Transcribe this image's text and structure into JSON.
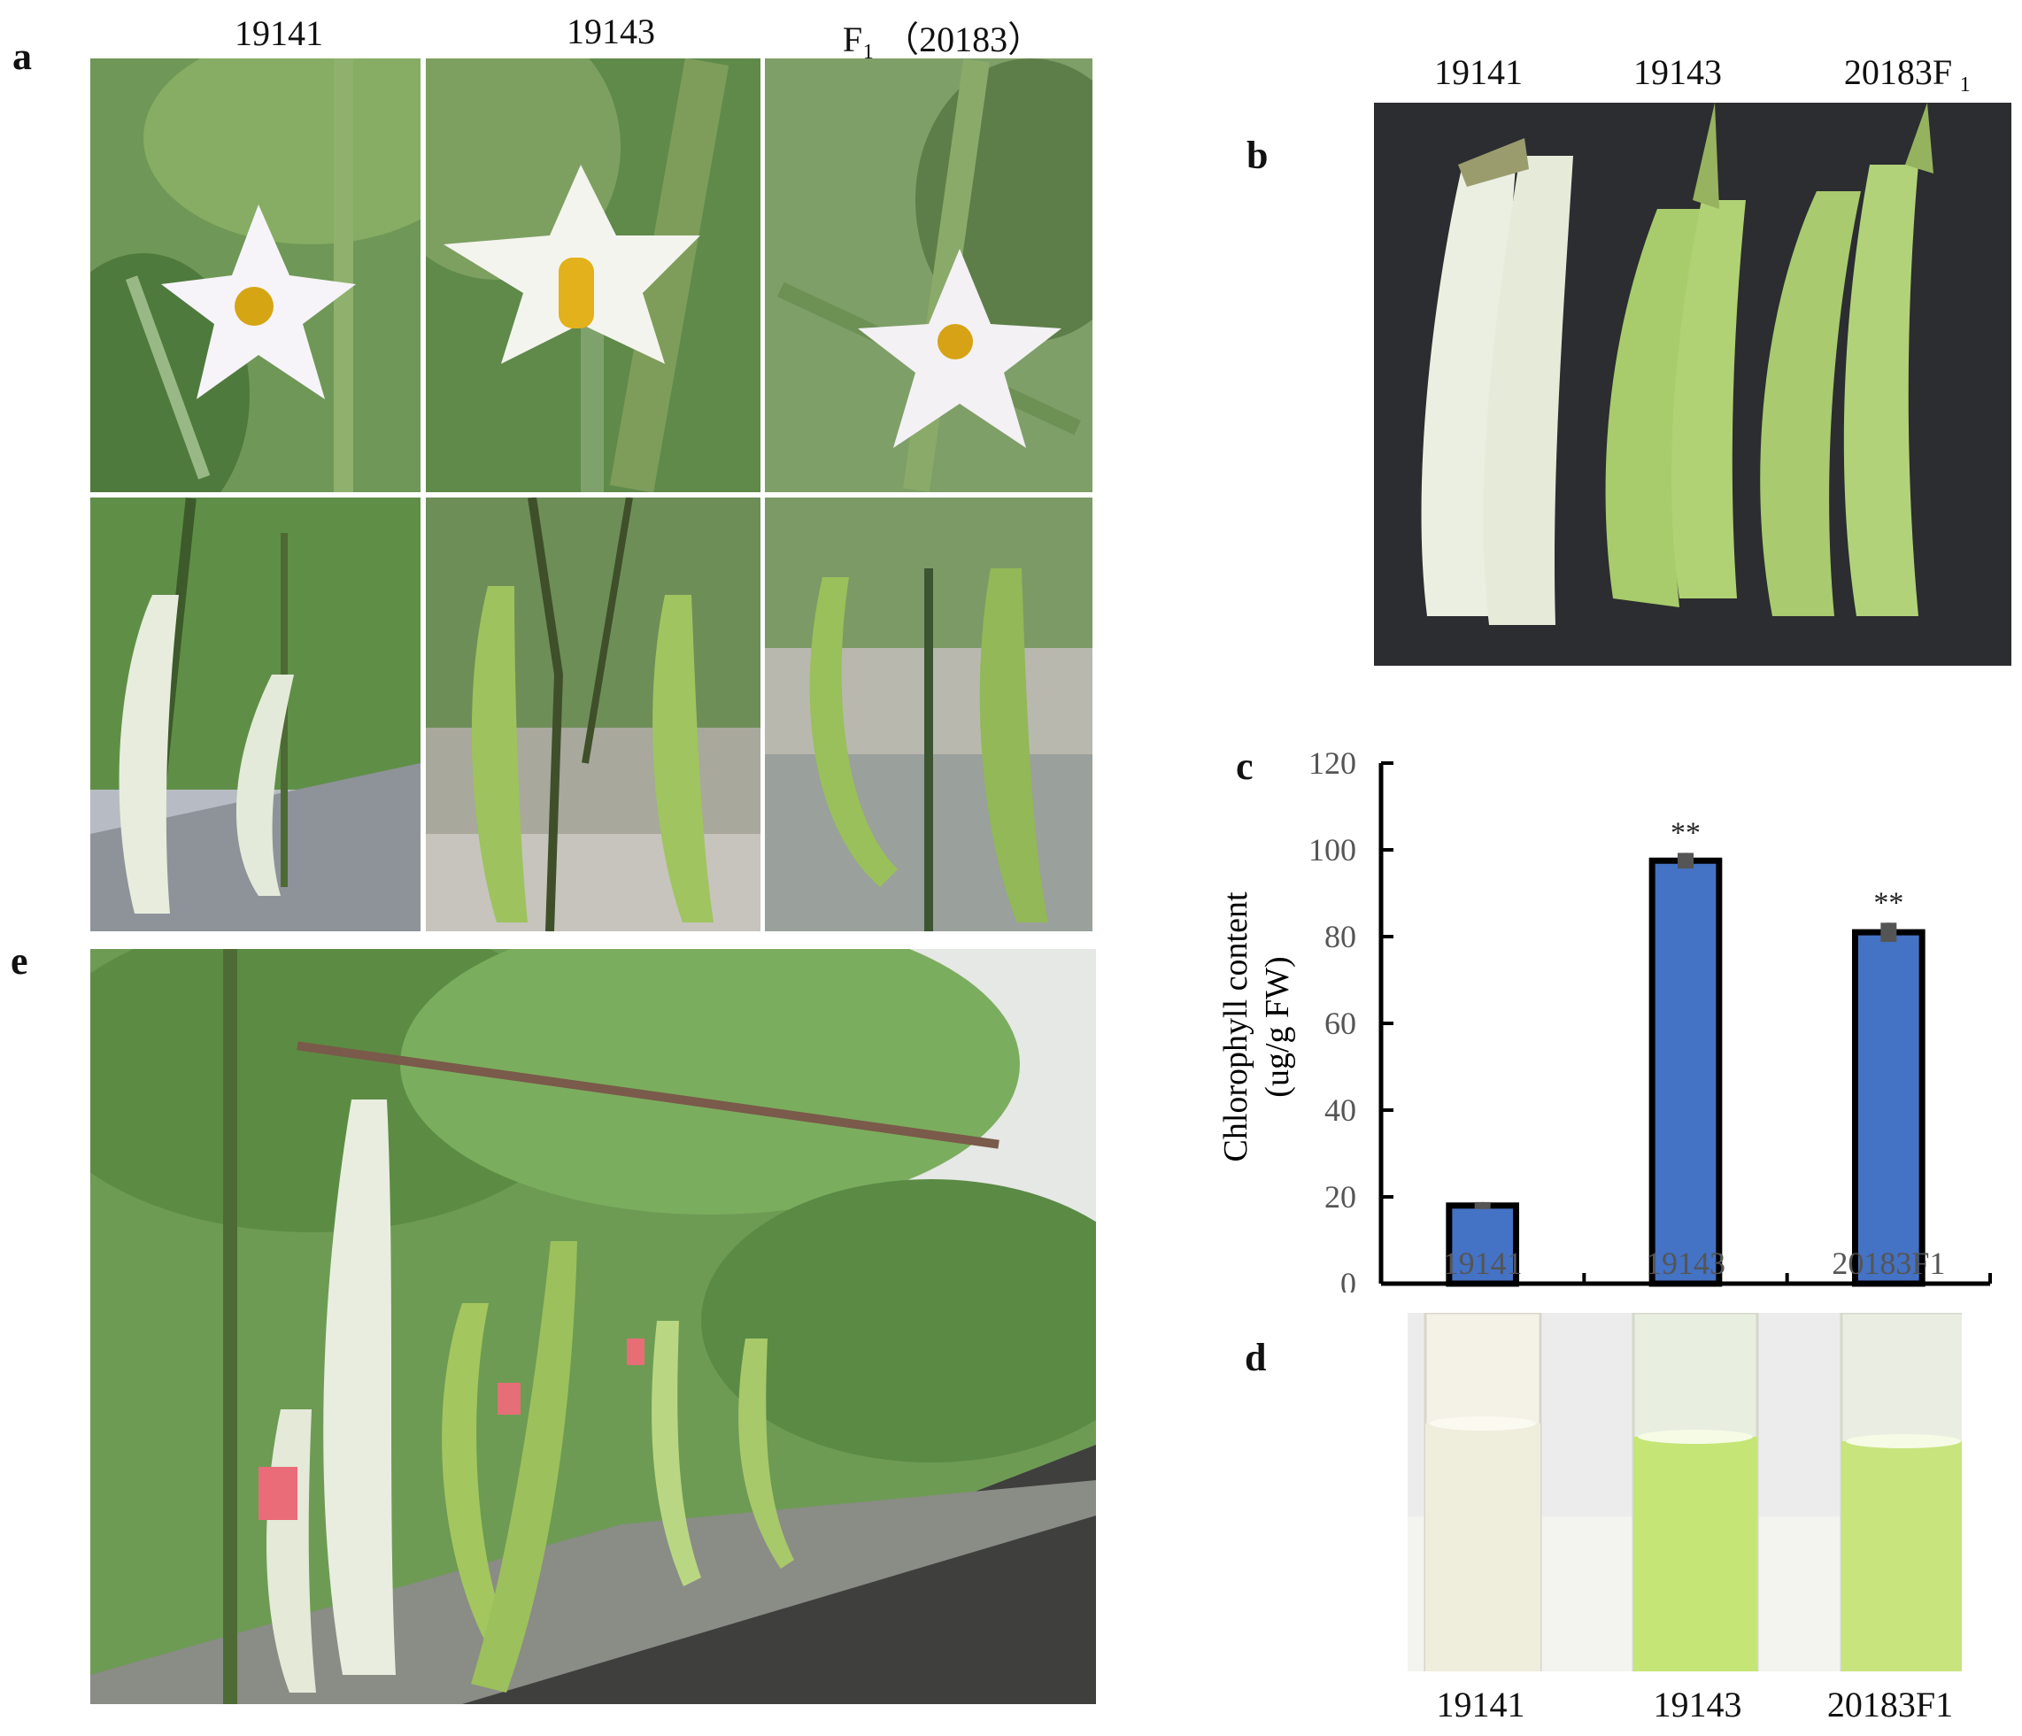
{
  "panels": {
    "a": {
      "letter": "a",
      "columns": [
        "19141",
        "19143",
        "F₁ （20183）"
      ]
    },
    "b": {
      "letter": "b",
      "columns": [
        "19141",
        "19143",
        "20183F ₁"
      ]
    },
    "c": {
      "letter": "c"
    },
    "d": {
      "letter": "d",
      "labels": [
        "19141",
        "19143",
        "20183F1"
      ]
    },
    "e": {
      "letter": "e"
    }
  },
  "colors": {
    "bar": "#4472c4",
    "bar_outline": "#000000",
    "error_bar": "#555555",
    "white_fruit": "#e9eedd",
    "green_fruit": "#a9cc6a",
    "leaf": "#5d8b45"
  },
  "chart_data": {
    "type": "bar",
    "categories": [
      "19141",
      "19143",
      "20183F1"
    ],
    "values": [
      18,
      97.5,
      81
    ],
    "errors": [
      0.8,
      1.8,
      2.2
    ],
    "significance": [
      "",
      "**",
      "**"
    ],
    "ylabel_line1": "Chlorophyll content",
    "ylabel_line2": "(ug/g  FW)",
    "ylim": [
      0,
      120
    ],
    "yticks": [
      0,
      20,
      40,
      60,
      80,
      100,
      120
    ],
    "grid": false,
    "legend": "none"
  }
}
